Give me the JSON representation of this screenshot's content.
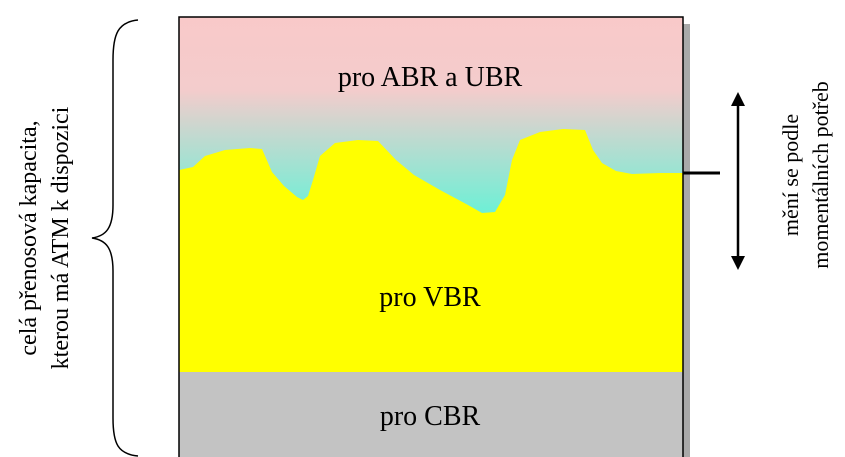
{
  "regions": {
    "top_label": "pro ABR a UBR",
    "middle_label": "pro VBR",
    "bottom_label": "pro CBR"
  },
  "left_annotation": {
    "line1": "celá přenosová kapacita,",
    "line2": "kterou má ATM k dispozici"
  },
  "right_annotation": {
    "line1": "mění se podle",
    "line2": "momentálních potřeb"
  },
  "colors": {
    "top_gradient_start": "#f9c9c9",
    "top_gradient_end": "#5ef4d7",
    "vbr_fill": "#ffff00",
    "cbr_fill": "#c3c3c3",
    "shadow": "#a9a9a9",
    "stroke": "#000000"
  }
}
